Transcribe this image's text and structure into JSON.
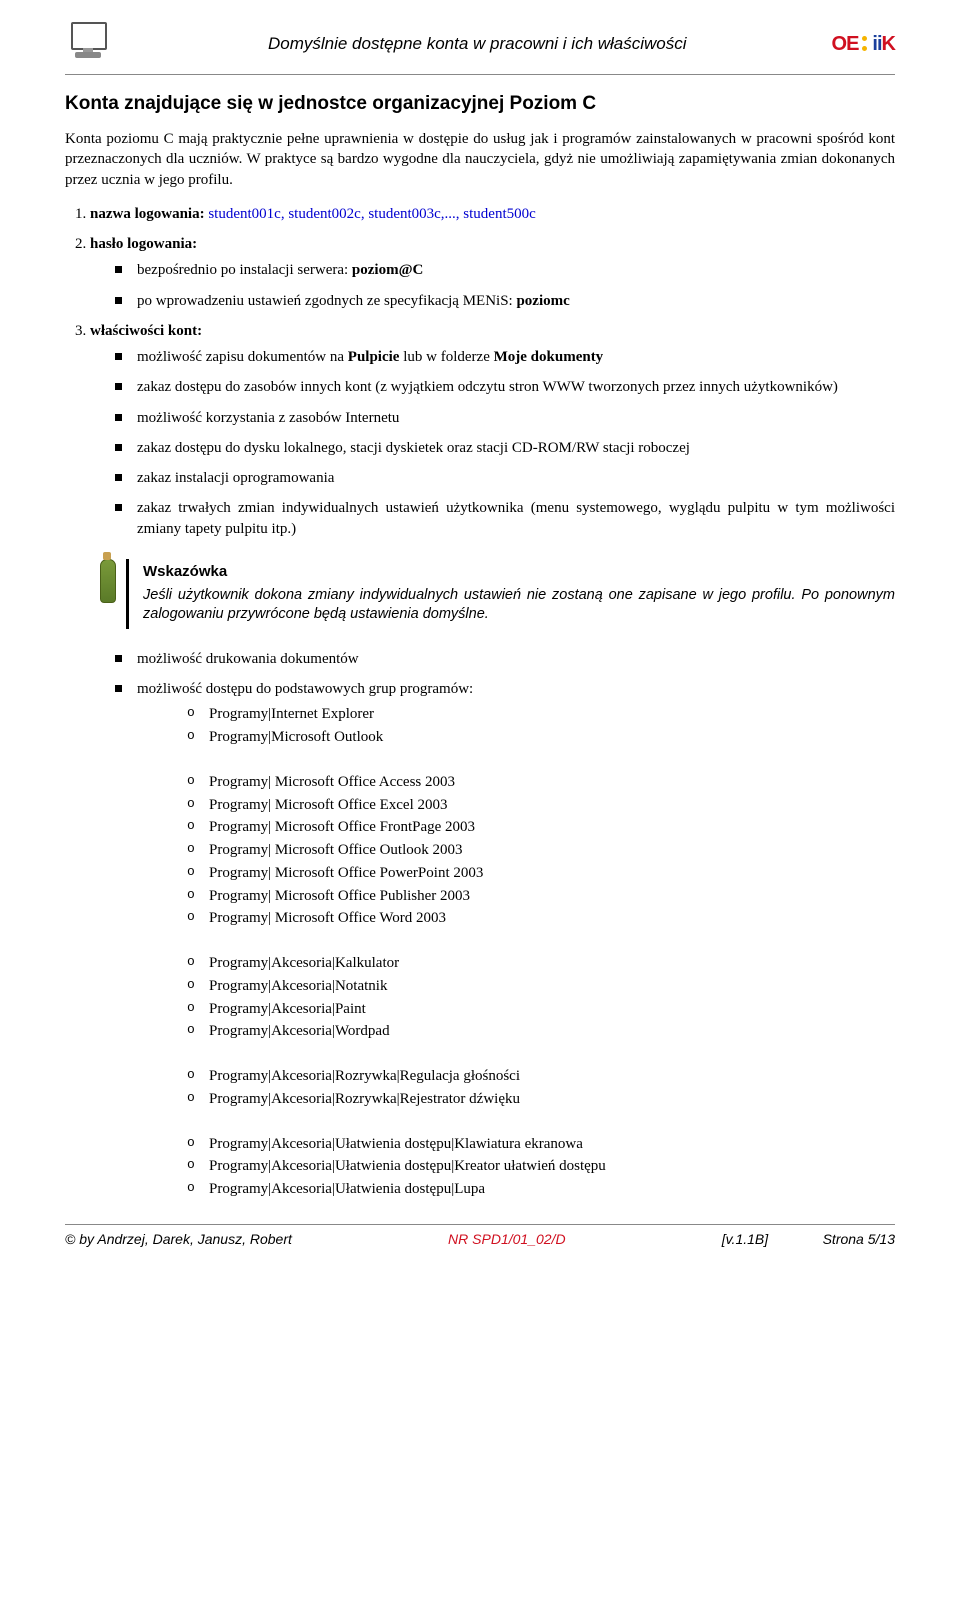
{
  "header": {
    "title": "Domyślnie dostępne konta w pracowni i ich właściwości",
    "logo_red1": "OE",
    "logo_blue": "ii",
    "logo_red2": "K"
  },
  "section_title": "Konta znajdujące się w jednostce organizacyjnej Poziom C",
  "intro": "Konta poziomu C mają praktycznie pełne uprawnienia w dostępie do usług jak i programów zainstalowanych w pracowni spośród kont przeznaczonych dla uczniów. W praktyce są bardzo wygodne dla nauczyciela, gdyż nie umożliwiają zapamiętywania zmian dokonanych przez ucznia w jego profilu.",
  "items": {
    "nazwa_label": "nazwa logowania:",
    "nazwa_value": " student001c, student002c, student003c,..., student500c",
    "haslo_label": "hasło logowania:",
    "haslo_bullets": {
      "b1_pre": "bezpośrednio po instalacji serwera: ",
      "b1_bold": "poziom@C",
      "b2_pre": "po wprowadzeniu ustawień zgodnych ze specyfikacją MENiS: ",
      "b2_bold": "poziomc"
    },
    "wlasciwosci_label": "właściwości kont:",
    "wl": {
      "w1_a": "możliwość zapisu dokumentów na ",
      "w1_b": "Pulpicie",
      "w1_c": " lub w folderze ",
      "w1_d": "Moje dokumenty",
      "w2": "zakaz dostępu do zasobów innych kont (z wyjątkiem odczytu stron WWW tworzonych przez innych użytkowników)",
      "w3": "możliwość korzystania z zasobów Internetu",
      "w4": "zakaz dostępu do dysku lokalnego, stacji dyskietek oraz stacji CD-ROM/RW stacji roboczej",
      "w5": "zakaz instalacji oprogramowania",
      "w6": "zakaz trwałych zmian indywidualnych ustawień użytkownika (menu systemowego, wyglądu pulpitu w tym możliwości zmiany tapety pulpitu itp.)"
    }
  },
  "tip": {
    "title": "Wskazówka",
    "text": "Jeśli użytkownik dokona zmiany indywidualnych ustawień nie zostaną one zapisane w jego profilu. Po ponownym zalogowaniu przywrócone będą ustawienia domyślne."
  },
  "cont": {
    "c1": "możliwość drukowania dokumentów",
    "c2": "możliwość dostępu do podstawowych grup programów:"
  },
  "programs": {
    "g1": [
      "Programy|Internet Explorer",
      "Programy|Microsoft Outlook"
    ],
    "g2": [
      "Programy| Microsoft Office  Access 2003",
      "Programy| Microsoft Office Excel  2003",
      "Programy| Microsoft Office  FrontPage 2003",
      "Programy| Microsoft Office  Outlook 2003",
      "Programy| Microsoft Office  PowerPoint 2003",
      "Programy| Microsoft Office  Publisher 2003",
      "Programy| Microsoft Office  Word 2003"
    ],
    "g3": [
      "Programy|Akcesoria|Kalkulator",
      "Programy|Akcesoria|Notatnik",
      "Programy|Akcesoria|Paint",
      "Programy|Akcesoria|Wordpad"
    ],
    "g4": [
      "Programy|Akcesoria|Rozrywka|Regulacja głośności",
      "Programy|Akcesoria|Rozrywka|Rejestrator dźwięku"
    ],
    "g5": [
      "Programy|Akcesoria|Ułatwienia dostępu|Klawiatura ekranowa",
      "Programy|Akcesoria|Ułatwienia dostępu|Kreator ułatwień dostępu",
      "Programy|Akcesoria|Ułatwienia dostępu|Lupa"
    ]
  },
  "footer": {
    "left": "© by Andrzej, Darek, Janusz, Robert",
    "mid": "NR SPD1/01_02/D",
    "right": "[v.1.1B]              Strona 5/13"
  }
}
